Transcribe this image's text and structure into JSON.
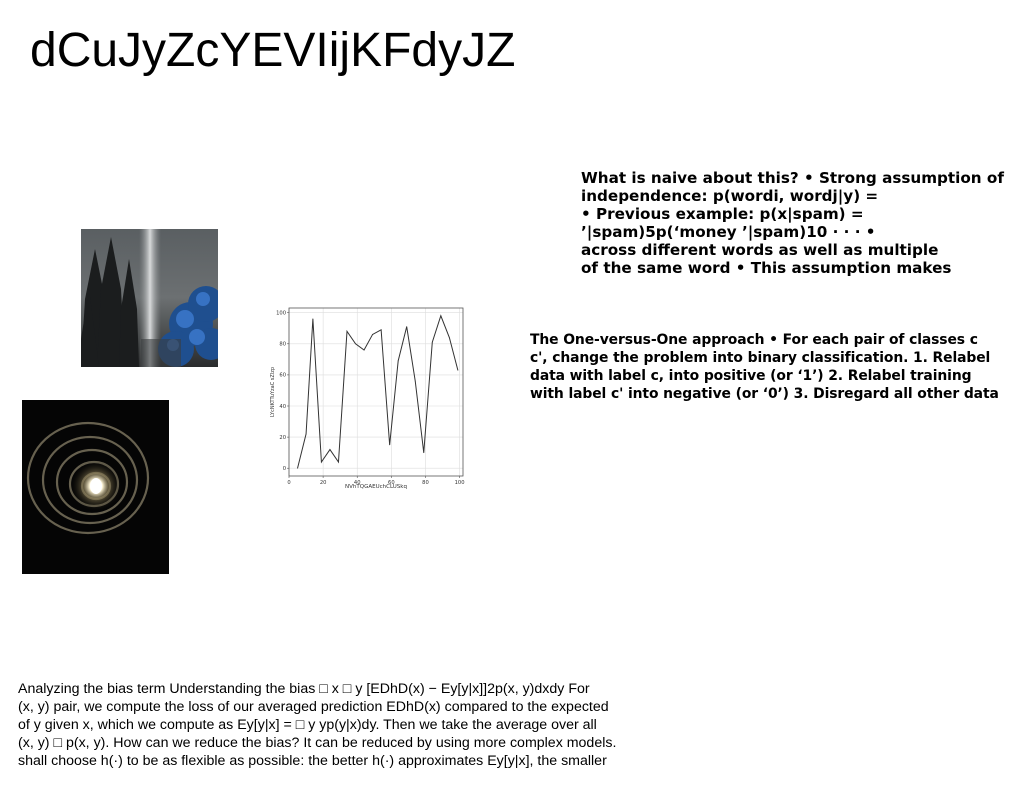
{
  "title": "dCuJyZcYEVIijKFdyJZ",
  "paragraphs": {
    "p1": "What is naive about this? • Strong assumption of\nindependence: p(wordi, wordj|y) =\n• Previous example: p(x|spam) =\n’|spam)5p(‘money ’|spam)10 · · · •\nacross different words as well as multiple\nof the same word • This assumption makes",
    "p2": "The One-versus-One approach • For each pair of classes c\nc', change the problem into binary classification. 1. Relabel\ndata with label c, into positive (or ‘1’) 2. Relabel training\nwith label c' into negative (or ‘0’) 3. Disregard all other data",
    "p3": "Analyzing the bias term Understanding the bias □ x □ y [EDhD(x) − Ey[y|x]]2p(x, y)dxdy For\n(x, y) pair, we compute the loss of our averaged prediction EDhD(x) compared to the expected\nof y given x, which we compute as Ey[y|x] = □ y yp(y|x)dy. Then we take the average over all\n(x, y) □ p(x, y). How can we reduce the bias? It can be reduced by using more complex models.\nshall choose h(·) to be as flexible as possible: the better h(·) approximates Ey[y|x], the smaller"
  },
  "images": {
    "forest": "forest-photo",
    "spiral": "light-spiral-photo"
  },
  "chart_data": {
    "type": "line",
    "x": [
      5,
      10,
      14,
      19,
      24,
      29,
      34,
      39,
      44,
      49,
      54,
      59,
      64,
      69,
      74,
      79,
      84,
      89,
      94,
      99
    ],
    "values": [
      0,
      22,
      96,
      4,
      12,
      4,
      88,
      80,
      76,
      86,
      89,
      15,
      69,
      91,
      56,
      10,
      81,
      98,
      84,
      63
    ],
    "xlabel": "NVhTQGAEUchCLUSkq",
    "ylabel": "LYcNKTTuYzaC sZlzp",
    "xticks": [
      0,
      20,
      40,
      60,
      80,
      100
    ],
    "yticks": [
      0,
      20,
      40,
      60,
      80,
      100
    ],
    "xlim": [
      0,
      102
    ],
    "ylim": [
      -5,
      103
    ],
    "grid": true,
    "color": "#333333"
  }
}
